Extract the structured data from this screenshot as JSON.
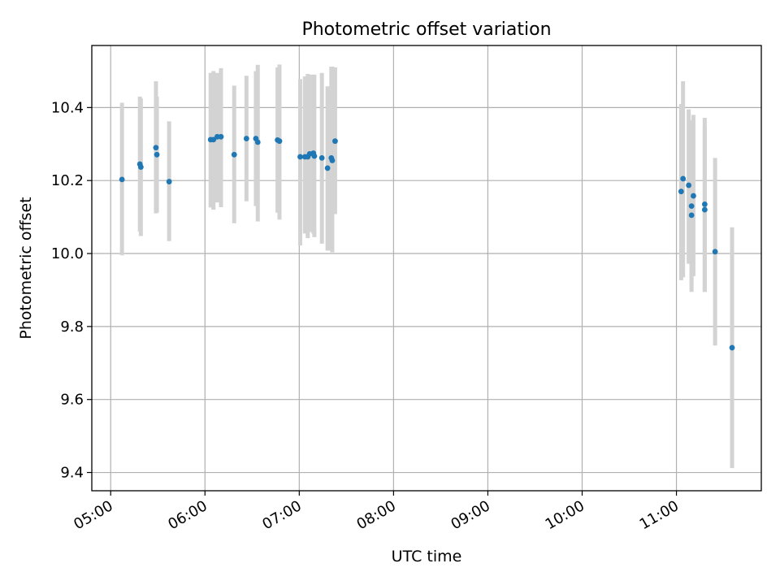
{
  "chart_data": {
    "type": "scatter",
    "title": "Photometric offset variation",
    "xlabel": "UTC time",
    "ylabel": "Photometric offset",
    "x_units": "hours UTC",
    "xlim": [
      4.8,
      11.9
    ],
    "ylim": [
      9.35,
      10.57
    ],
    "grid": true,
    "x_ticks": [
      5,
      6,
      7,
      8,
      9,
      10,
      11
    ],
    "x_tick_labels": [
      "05:00",
      "06:00",
      "07:00",
      "08:00",
      "09:00",
      "10:00",
      "11:00"
    ],
    "y_ticks": [
      9.4,
      9.6,
      9.8,
      10.0,
      10.2,
      10.4
    ],
    "y_tick_labels": [
      "9.4",
      "9.6",
      "9.8",
      "10.0",
      "10.2",
      "10.4"
    ],
    "colors": {
      "point": "#1f77b4",
      "errorbar": "#d3d3d3"
    },
    "points": [
      {
        "x": 5.12,
        "y": 10.203,
        "lo": 9.995,
        "hi": 10.413
      },
      {
        "x": 5.31,
        "y": 10.245,
        "lo": 10.06,
        "hi": 10.43
      },
      {
        "x": 5.32,
        "y": 10.237,
        "lo": 10.048,
        "hi": 10.425
      },
      {
        "x": 5.48,
        "y": 10.29,
        "lo": 10.11,
        "hi": 10.472
      },
      {
        "x": 5.49,
        "y": 10.271,
        "lo": 10.112,
        "hi": 10.43
      },
      {
        "x": 5.62,
        "y": 10.197,
        "lo": 10.034,
        "hi": 10.362
      },
      {
        "x": 6.06,
        "y": 10.312,
        "lo": 10.126,
        "hi": 10.495
      },
      {
        "x": 6.09,
        "y": 10.312,
        "lo": 10.12,
        "hi": 10.5
      },
      {
        "x": 6.13,
        "y": 10.32,
        "lo": 10.14,
        "hi": 10.495
      },
      {
        "x": 6.17,
        "y": 10.32,
        "lo": 10.127,
        "hi": 10.508
      },
      {
        "x": 6.31,
        "y": 10.271,
        "lo": 10.083,
        "hi": 10.46
      },
      {
        "x": 6.44,
        "y": 10.315,
        "lo": 10.143,
        "hi": 10.487
      },
      {
        "x": 6.54,
        "y": 10.315,
        "lo": 10.13,
        "hi": 10.5
      },
      {
        "x": 6.56,
        "y": 10.305,
        "lo": 10.088,
        "hi": 10.517
      },
      {
        "x": 6.77,
        "y": 10.311,
        "lo": 10.112,
        "hi": 10.51
      },
      {
        "x": 6.79,
        "y": 10.308,
        "lo": 10.093,
        "hi": 10.518
      },
      {
        "x": 7.01,
        "y": 10.265,
        "lo": 10.022,
        "hi": 10.478
      },
      {
        "x": 7.06,
        "y": 10.265,
        "lo": 10.055,
        "hi": 10.485
      },
      {
        "x": 7.09,
        "y": 10.265,
        "lo": 10.042,
        "hi": 10.492
      },
      {
        "x": 7.11,
        "y": 10.273,
        "lo": 10.059,
        "hi": 10.49
      },
      {
        "x": 7.15,
        "y": 10.275,
        "lo": 10.055,
        "hi": 10.49
      },
      {
        "x": 7.16,
        "y": 10.267,
        "lo": 10.045,
        "hi": 10.49
      },
      {
        "x": 7.24,
        "y": 10.262,
        "lo": 10.027,
        "hi": 10.495
      },
      {
        "x": 7.3,
        "y": 10.234,
        "lo": 10.008,
        "hi": 10.458
      },
      {
        "x": 7.34,
        "y": 10.262,
        "lo": 10.008,
        "hi": 10.512
      },
      {
        "x": 7.35,
        "y": 10.255,
        "lo": 10.003,
        "hi": 10.512
      },
      {
        "x": 7.38,
        "y": 10.308,
        "lo": 10.108,
        "hi": 10.51
      },
      {
        "x": 11.05,
        "y": 10.17,
        "lo": 9.927,
        "hi": 10.41
      },
      {
        "x": 11.07,
        "y": 10.205,
        "lo": 9.935,
        "hi": 10.472
      },
      {
        "x": 11.13,
        "y": 10.187,
        "lo": 9.972,
        "hi": 10.395
      },
      {
        "x": 11.16,
        "y": 10.13,
        "lo": 9.895,
        "hi": 10.365
      },
      {
        "x": 11.16,
        "y": 10.105,
        "lo": 9.912,
        "hi": 10.298
      },
      {
        "x": 11.18,
        "y": 10.158,
        "lo": 9.938,
        "hi": 10.38
      },
      {
        "x": 11.3,
        "y": 10.135,
        "lo": 9.895,
        "hi": 10.372
      },
      {
        "x": 11.3,
        "y": 10.12,
        "lo": 9.895,
        "hi": 10.345
      },
      {
        "x": 11.41,
        "y": 10.005,
        "lo": 9.748,
        "hi": 10.262
      },
      {
        "x": 11.59,
        "y": 9.742,
        "lo": 9.412,
        "hi": 10.072
      }
    ]
  }
}
